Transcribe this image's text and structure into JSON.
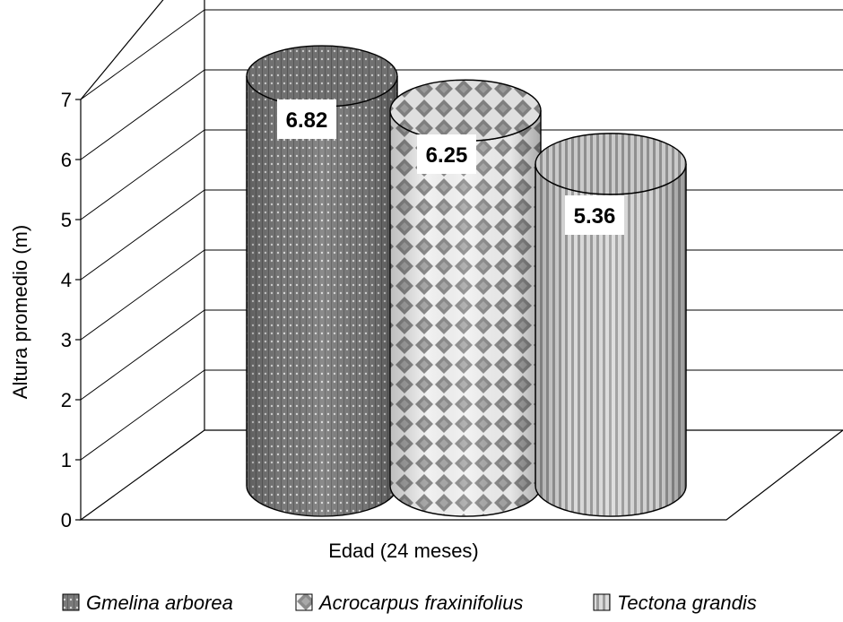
{
  "chart_data": {
    "type": "bar",
    "style": "3d-cylinder",
    "categories": [
      "Edad (24 meses)"
    ],
    "series": [
      {
        "name": "Gmelina arborea",
        "values": [
          6.82
        ],
        "label": "6.82",
        "color": "#777777",
        "pattern": "dots"
      },
      {
        "name": "Acrocarpus fraxinifolius",
        "values": [
          6.25
        ],
        "label": "6.25",
        "color": "#9a9a9a",
        "pattern": "diamonds"
      },
      {
        "name": "Tectona grandis",
        "values": [
          5.36
        ],
        "label": "5.36",
        "color": "#c4c4c4",
        "pattern": "vertical-stripes"
      }
    ],
    "xlabel": "Edad (24 meses)",
    "ylabel": "Altura promedio (m)",
    "ylim": [
      0,
      7
    ],
    "yticks": [
      "0",
      "1",
      "2",
      "3",
      "4",
      "5",
      "6",
      "7"
    ],
    "grid": true,
    "legend_position": "bottom"
  }
}
